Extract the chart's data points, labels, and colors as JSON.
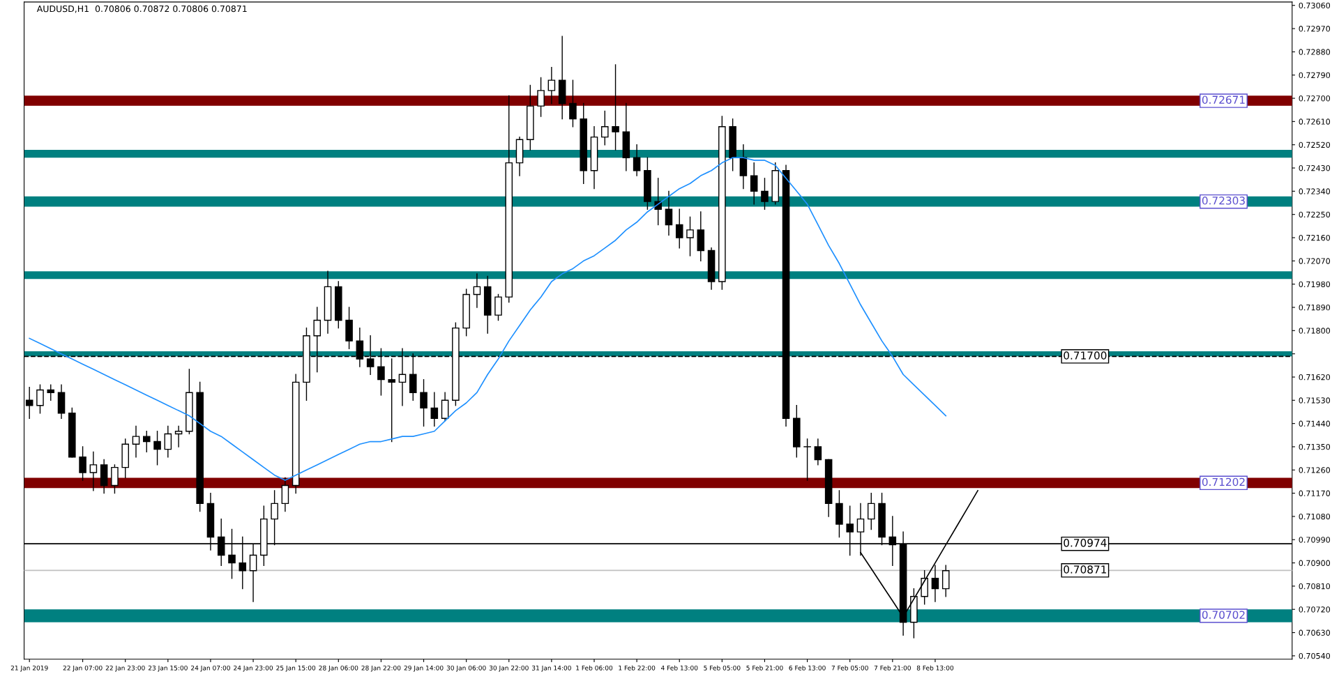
{
  "chart_data": {
    "type": "candlestick",
    "title": "AUDUSD,H1  0.70806 0.70872 0.70806 0.70871",
    "categories": [
      "21 Jan 2019",
      null,
      null,
      null,
      null,
      "22 Jan 07:00",
      null,
      null,
      null,
      "22 Jan 23:00",
      null,
      null,
      null,
      "23 Jan 15:00",
      null,
      null,
      null,
      "24 Jan 07:00",
      null,
      null,
      null,
      "24 Jan 23:00",
      null,
      null,
      null,
      "25 Jan 15:00",
      null,
      null,
      null,
      "28 Jan 06:00",
      null,
      null,
      null,
      "28 Jan 22:00",
      null,
      null,
      null,
      "29 Jan 14:00",
      null,
      null,
      null,
      "30 Jan 06:00",
      null,
      null,
      null,
      "30 Jan 22:00",
      null,
      null,
      null,
      "31 Jan 14:00",
      null,
      null,
      null,
      "1 Feb 06:00",
      null,
      null,
      null,
      "1 Feb 22:00",
      null,
      null,
      null,
      "4 Feb 13:00",
      null,
      null,
      null,
      "5 Feb 05:00",
      null,
      null,
      null,
      "5 Feb 21:00",
      null,
      null,
      null,
      "6 Feb 13:00",
      null,
      null,
      null,
      "7 Feb 05:00",
      null,
      null,
      null,
      "7 Feb 21:00",
      null,
      null,
      null,
      "8 Feb 13:00",
      null,
      null,
      null,
      null,
      null,
      null,
      null,
      null,
      null,
      null,
      null,
      null,
      null,
      null,
      null,
      null,
      null,
      null,
      null,
      null,
      null,
      null,
      null,
      null,
      null,
      null,
      null,
      null,
      null,
      null,
      null,
      null,
      null
    ],
    "ohlc": [
      [
        0.7153,
        0.7158,
        0.7146,
        0.7151
      ],
      [
        0.7151,
        0.7159,
        0.7148,
        0.7157
      ],
      [
        0.7157,
        0.7159,
        0.7153,
        0.7156
      ],
      [
        0.7156,
        0.7159,
        0.7146,
        0.7148
      ],
      [
        0.7148,
        0.715,
        0.7131,
        0.7131
      ],
      [
        0.7131,
        0.7135,
        0.7122,
        0.7125
      ],
      [
        0.7125,
        0.7133,
        0.7118,
        0.7128
      ],
      [
        0.7128,
        0.713,
        0.7117,
        0.712
      ],
      [
        0.712,
        0.7128,
        0.7117,
        0.7127
      ],
      [
        0.7127,
        0.7138,
        0.7123,
        0.7136
      ],
      [
        0.7136,
        0.7143,
        0.7131,
        0.7139
      ],
      [
        0.7139,
        0.7141,
        0.7133,
        0.7137
      ],
      [
        0.7137,
        0.7141,
        0.7128,
        0.7134
      ],
      [
        0.7134,
        0.7143,
        0.7131,
        0.714
      ],
      [
        0.714,
        0.7143,
        0.7135,
        0.7141
      ],
      [
        0.7141,
        0.7165,
        0.714,
        0.7156
      ],
      [
        0.7156,
        0.716,
        0.711,
        0.7113
      ],
      [
        0.7113,
        0.7117,
        0.7095,
        0.71
      ],
      [
        0.71,
        0.7107,
        0.7089,
        0.7093
      ],
      [
        0.7093,
        0.7103,
        0.7084,
        0.709
      ],
      [
        0.709,
        0.71,
        0.708,
        0.7087
      ],
      [
        0.7087,
        0.7097,
        0.7075,
        0.7093
      ],
      [
        0.7093,
        0.7112,
        0.7089,
        0.7107
      ],
      [
        0.7107,
        0.7118,
        0.7097,
        0.7113
      ],
      [
        0.7113,
        0.7123,
        0.711,
        0.712
      ],
      [
        0.712,
        0.7163,
        0.7117,
        0.716
      ],
      [
        0.716,
        0.7181,
        0.7153,
        0.7178
      ],
      [
        0.7178,
        0.7189,
        0.7164,
        0.7184
      ],
      [
        0.7184,
        0.7203,
        0.7179,
        0.7197
      ],
      [
        0.7197,
        0.7199,
        0.7181,
        0.7184
      ],
      [
        0.7184,
        0.7189,
        0.7173,
        0.7176
      ],
      [
        0.7176,
        0.7181,
        0.7166,
        0.7169
      ],
      [
        0.7169,
        0.7178,
        0.7163,
        0.7166
      ],
      [
        0.7166,
        0.7173,
        0.7155,
        0.7161
      ],
      [
        0.7161,
        0.7169,
        0.7137,
        0.716
      ],
      [
        0.716,
        0.7173,
        0.7151,
        0.7163
      ],
      [
        0.7163,
        0.7171,
        0.7153,
        0.7156
      ],
      [
        0.7156,
        0.7161,
        0.7143,
        0.715
      ],
      [
        0.715,
        0.7156,
        0.7143,
        0.7146
      ],
      [
        0.7146,
        0.7156,
        0.7145,
        0.7153
      ],
      [
        0.7153,
        0.7183,
        0.7151,
        0.7181
      ],
      [
        0.7181,
        0.7196,
        0.7178,
        0.7194
      ],
      [
        0.7194,
        0.7202,
        0.7189,
        0.7197
      ],
      [
        0.7197,
        0.7201,
        0.7179,
        0.7186
      ],
      [
        0.7186,
        0.7194,
        0.7184,
        0.7193
      ],
      [
        0.7193,
        0.7271,
        0.7191,
        0.7245
      ],
      [
        0.7245,
        0.7255,
        0.724,
        0.7254
      ],
      [
        0.7254,
        0.7275,
        0.725,
        0.7267
      ],
      [
        0.7267,
        0.7278,
        0.7263,
        0.7273
      ],
      [
        0.7273,
        0.7282,
        0.7268,
        0.7277
      ],
      [
        0.7277,
        0.7294,
        0.7262,
        0.7268
      ],
      [
        0.7268,
        0.7277,
        0.7259,
        0.7262
      ],
      [
        0.7262,
        0.7268,
        0.7237,
        0.7242
      ],
      [
        0.7242,
        0.7259,
        0.7235,
        0.7255
      ],
      [
        0.7255,
        0.7265,
        0.7252,
        0.7259
      ],
      [
        0.7259,
        0.7283,
        0.725,
        0.7257
      ],
      [
        0.7257,
        0.7268,
        0.7242,
        0.7247
      ],
      [
        0.7247,
        0.7252,
        0.724,
        0.7242
      ],
      [
        0.7242,
        0.7247,
        0.7227,
        0.723
      ],
      [
        0.723,
        0.7239,
        0.7221,
        0.7227
      ],
      [
        0.7227,
        0.7234,
        0.7217,
        0.7221
      ],
      [
        0.7221,
        0.7227,
        0.7212,
        0.7216
      ],
      [
        0.7216,
        0.7224,
        0.7209,
        0.7219
      ],
      [
        0.7219,
        0.7226,
        0.7207,
        0.7211
      ],
      [
        0.7211,
        0.7212,
        0.7196,
        0.7199
      ],
      [
        0.7199,
        0.7263,
        0.7196,
        0.7259
      ],
      [
        0.7259,
        0.7262,
        0.7242,
        0.7247
      ],
      [
        0.7247,
        0.7252,
        0.7235,
        0.724
      ],
      [
        0.724,
        0.7245,
        0.7229,
        0.7234
      ],
      [
        0.7234,
        0.7239,
        0.7227,
        0.723
      ],
      [
        0.723,
        0.7245,
        0.7229,
        0.7242
      ],
      [
        0.7242,
        0.7244,
        0.7143,
        0.7146
      ],
      [
        0.7146,
        0.7151,
        0.7131,
        0.7135
      ],
      [
        0.7135,
        0.7138,
        0.7122,
        0.7135
      ],
      [
        0.7135,
        0.7138,
        0.7128,
        0.713
      ],
      [
        0.713,
        0.713,
        0.7108,
        0.7113
      ],
      [
        0.7113,
        0.7118,
        0.71,
        0.7105
      ],
      [
        0.7105,
        0.7112,
        0.7093,
        0.7102
      ],
      [
        0.7102,
        0.7113,
        0.7093,
        0.7107
      ],
      [
        0.7107,
        0.7117,
        0.7103,
        0.7113
      ],
      [
        0.7113,
        0.7117,
        0.7097,
        0.71
      ],
      [
        0.71,
        0.7108,
        0.7089,
        0.7097
      ],
      [
        0.7097,
        0.7102,
        0.7062,
        0.7067
      ],
      [
        0.7067,
        0.708,
        0.7061,
        0.7077
      ],
      [
        0.7077,
        0.7087,
        0.7074,
        0.7084
      ],
      [
        0.7084,
        0.7089,
        0.7075,
        0.708
      ],
      [
        0.708,
        0.7089,
        0.7077,
        0.7087
      ],
      null,
      null,
      null,
      null,
      null,
      null,
      null,
      null,
      null,
      null,
      null,
      null,
      null,
      null,
      null,
      null,
      null,
      null,
      null,
      null,
      null,
      null,
      null,
      null,
      null,
      null,
      null,
      null,
      null,
      null,
      null,
      null
    ],
    "series": [
      {
        "type": "line",
        "color": "#1e90ff",
        "values": [
          0.7177,
          0.7175,
          0.7173,
          0.7171,
          0.7169,
          0.7167,
          0.7165,
          0.7163,
          0.7161,
          0.7159,
          0.7157,
          0.7155,
          0.7153,
          0.7151,
          0.7149,
          0.7147,
          0.7144,
          0.7141,
          0.7139,
          0.7136,
          0.7133,
          0.713,
          0.7127,
          0.7124,
          0.7122,
          0.7124,
          0.7126,
          0.7128,
          0.713,
          0.7132,
          0.7134,
          0.7136,
          0.7137,
          0.7137,
          0.7138,
          0.7139,
          0.7139,
          0.714,
          0.7141,
          0.7145,
          0.7149,
          0.7152,
          0.7156,
          0.7163,
          0.7169,
          0.7176,
          0.7182,
          0.7188,
          0.7193,
          0.7199,
          0.7202,
          0.7204,
          0.7207,
          0.7209,
          0.7212,
          0.7215,
          0.7219,
          0.7222,
          0.7226,
          0.7229,
          0.7232,
          0.7235,
          0.7237,
          0.724,
          0.7242,
          0.7245,
          0.7247,
          0.7247,
          0.7246,
          0.7246,
          0.7244,
          0.7239,
          0.7234,
          0.7229,
          0.7221,
          0.7213,
          0.7206,
          0.7198,
          0.719,
          0.7183,
          0.7176,
          0.717,
          0.7163,
          0.7159,
          0.7155,
          0.7151,
          0.7147,
          null,
          null,
          null,
          null,
          null,
          null,
          null,
          null,
          null,
          null,
          null,
          null,
          null,
          null,
          null,
          null,
          null,
          null,
          null,
          null,
          null,
          null,
          null,
          null,
          null,
          null,
          null,
          null,
          null,
          null,
          null,
          null
        ]
      },
      {
        "type": "line",
        "color": "#000000",
        "values": [
          null,
          null,
          null,
          null,
          null,
          null,
          null,
          null,
          null,
          null,
          null,
          null,
          null,
          null,
          null,
          null,
          null,
          null,
          null,
          null,
          null,
          null,
          null,
          null,
          null,
          null,
          null,
          null,
          null,
          null,
          null,
          null,
          null,
          null,
          null,
          null,
          null,
          null,
          null,
          null,
          null,
          null,
          null,
          null,
          null,
          null,
          null,
          null,
          null,
          null,
          null,
          null,
          null,
          null,
          null,
          null,
          null,
          null,
          null,
          null,
          null,
          null,
          null,
          null,
          null,
          null,
          null,
          null,
          null,
          null,
          null,
          null,
          null,
          null,
          null,
          null,
          null,
          null,
          0.7094,
          0.70878,
          0.70815,
          0.70753,
          0.7069,
          0.7076,
          0.7083,
          0.709,
          0.7097,
          0.7104,
          0.7111,
          0.7118,
          null,
          null,
          null,
          null,
          null,
          null,
          null,
          null,
          null,
          null,
          null,
          null,
          null,
          null,
          null,
          null,
          null,
          null,
          null,
          null,
          null,
          null,
          null,
          null,
          null,
          null,
          null,
          null,
          null
        ]
      }
    ],
    "ylim": [
      0.70527,
      0.73073
    ],
    "yticks": [
      {
        "value": 0.7054,
        "label": "0.70540"
      },
      {
        "value": 0.7063,
        "label": "0.70630"
      },
      {
        "value": 0.7072,
        "label": "0.70720"
      },
      {
        "value": 0.7081,
        "label": "0.70810"
      },
      {
        "value": 0.709,
        "label": "0.70900"
      },
      {
        "value": 0.7099,
        "label": "0.70990"
      },
      {
        "value": 0.7108,
        "label": "0.71080"
      },
      {
        "value": 0.7117,
        "label": "0.71170"
      },
      {
        "value": 0.7126,
        "label": "0.71260"
      },
      {
        "value": 0.7135,
        "label": "0.71350"
      },
      {
        "value": 0.7144,
        "label": "0.71440"
      },
      {
        "value": 0.7153,
        "label": "0.71530"
      },
      {
        "value": 0.7162,
        "label": "0.71620"
      },
      {
        "value": 0.7171,
        "label": null
      },
      {
        "value": 0.718,
        "label": "0.71800"
      },
      {
        "value": 0.7189,
        "label": "0.71890"
      },
      {
        "value": 0.7198,
        "label": "0.71980"
      },
      {
        "value": 0.7207,
        "label": "0.72070"
      },
      {
        "value": 0.7216,
        "label": "0.72160"
      },
      {
        "value": 0.7225,
        "label": "0.72250"
      },
      {
        "value": 0.7234,
        "label": "0.72340"
      },
      {
        "value": 0.7243,
        "label": "0.72430"
      },
      {
        "value": 0.7252,
        "label": "0.72520"
      },
      {
        "value": 0.7261,
        "label": "0.72610"
      },
      {
        "value": 0.727,
        "label": "0.72700"
      },
      {
        "value": 0.7279,
        "label": "0.72790"
      },
      {
        "value": 0.7288,
        "label": "0.72880"
      },
      {
        "value": 0.7297,
        "label": "0.72970"
      },
      {
        "value": 0.7306,
        "label": "0.73060"
      }
    ],
    "bands": [
      {
        "axis": "y",
        "from": 0.72671,
        "to": 0.7271,
        "label": "0.72671",
        "color": "#800000"
      },
      {
        "axis": "y",
        "from": 0.7247,
        "to": 0.725,
        "color": "#008080"
      },
      {
        "axis": "y",
        "from": 0.7228,
        "to": 0.7232,
        "label": "0.72303",
        "color": "#008080"
      },
      {
        "axis": "y",
        "from": 0.72,
        "to": 0.7203,
        "color": "#008080"
      },
      {
        "axis": "y",
        "from": 0.717,
        "to": 0.7172,
        "color": "#008080"
      },
      {
        "axis": "y",
        "from": 0.7119,
        "to": 0.7123,
        "label": "0.71202",
        "color": "#800000"
      },
      {
        "axis": "y",
        "from": 0.7067,
        "to": 0.7072,
        "label": "0.70702",
        "color": "#008080"
      }
    ],
    "ref_lines": [
      {
        "axis": "y",
        "value": 0.717,
        "label": "0.71700",
        "color": "#000000",
        "line_style": "dashed"
      },
      {
        "axis": "y",
        "value": 0.70974,
        "label": "0.70974",
        "color": "#000000",
        "line_style": "solid"
      },
      {
        "axis": "y",
        "value": 0.70871,
        "label": "0.70871",
        "color": "#c0c0c0",
        "line_style": "solid"
      }
    ]
  }
}
